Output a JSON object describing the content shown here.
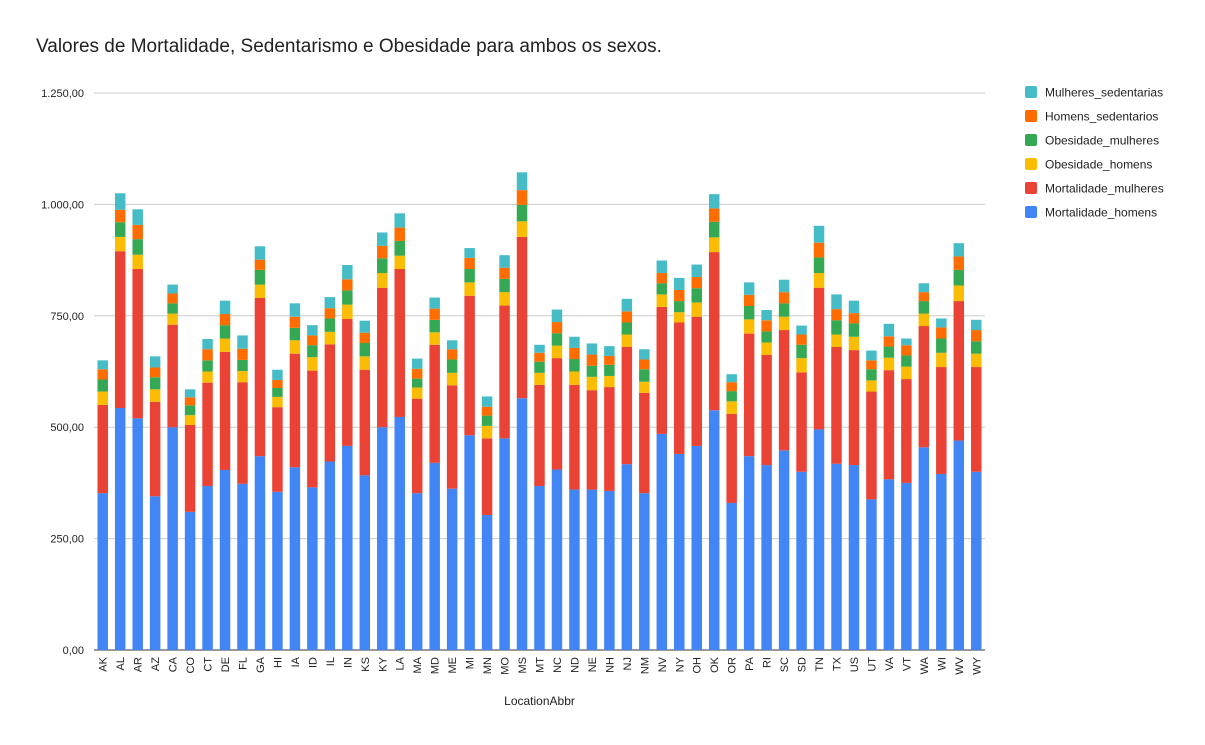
{
  "chart_data": {
    "type": "bar",
    "stacked": true,
    "title": "Valores de Mortalidade, Sedentarismo e Obesidade para ambos os sexos.",
    "xlabel": "LocationAbbr",
    "ylabel": "",
    "ylim": [
      0,
      1250
    ],
    "yticks": [
      "0,00",
      "250,00",
      "500,00",
      "750,00",
      "1.000,00",
      "1.250,00"
    ],
    "grid": true,
    "legend_position": "right",
    "categories": [
      "AK",
      "AL",
      "AR",
      "AZ",
      "CA",
      "CO",
      "CT",
      "DE",
      "FL",
      "GA",
      "HI",
      "IA",
      "ID",
      "IL",
      "IN",
      "KS",
      "KY",
      "LA",
      "MA",
      "MD",
      "ME",
      "MI",
      "MN",
      "MO",
      "MS",
      "MT",
      "NC",
      "ND",
      "NE",
      "NH",
      "NJ",
      "NM",
      "NV",
      "NY",
      "OH",
      "OK",
      "OR",
      "PA",
      "RI",
      "SC",
      "SD",
      "TN",
      "TX",
      "US",
      "UT",
      "VA",
      "VT",
      "WA",
      "WI",
      "WV",
      "WY"
    ],
    "series": [
      {
        "name": "Mortalidade_homens",
        "color": "#4285f4",
        "values": [
          352,
          543,
          520,
          345,
          500,
          310,
          368,
          404,
          373,
          435,
          355,
          410,
          365,
          423,
          458,
          392,
          500,
          523,
          352,
          420,
          362,
          482,
          303,
          475,
          565,
          368,
          405,
          360,
          360,
          357,
          417,
          352,
          485,
          440,
          458,
          538,
          330,
          435,
          415,
          448,
          400,
          495,
          418,
          415,
          338,
          383,
          375,
          455,
          395,
          470,
          400
        ]
      },
      {
        "name": "Mortalidade_mulheres",
        "color": "#ea4335",
        "values": [
          198,
          352,
          335,
          212,
          230,
          195,
          232,
          265,
          228,
          355,
          190,
          255,
          262,
          263,
          285,
          237,
          313,
          332,
          212,
          265,
          232,
          313,
          172,
          298,
          362,
          227,
          250,
          235,
          223,
          233,
          263,
          225,
          285,
          295,
          290,
          355,
          200,
          275,
          247,
          270,
          223,
          318,
          262,
          258,
          242,
          245,
          233,
          272,
          240,
          313,
          235
        ]
      },
      {
        "name": "Obesidade_homens",
        "color": "#fbbc04",
        "values": [
          30,
          32,
          32,
          28,
          25,
          22,
          25,
          30,
          25,
          30,
          23,
          30,
          30,
          28,
          32,
          30,
          33,
          30,
          25,
          28,
          28,
          30,
          28,
          30,
          35,
          27,
          28,
          30,
          30,
          25,
          28,
          25,
          28,
          23,
          32,
          33,
          28,
          32,
          28,
          30,
          32,
          33,
          28,
          30,
          25,
          28,
          28,
          28,
          32,
          35,
          30
        ]
      },
      {
        "name": "Obesidade_mulheres",
        "color": "#34a853",
        "values": [
          27,
          33,
          35,
          27,
          23,
          22,
          25,
          30,
          25,
          33,
          20,
          28,
          27,
          30,
          32,
          30,
          33,
          33,
          20,
          28,
          30,
          30,
          23,
          30,
          37,
          25,
          28,
          28,
          25,
          25,
          27,
          28,
          25,
          25,
          32,
          35,
          23,
          30,
          25,
          30,
          30,
          35,
          32,
          30,
          25,
          25,
          25,
          28,
          32,
          35,
          28
        ]
      },
      {
        "name": "Homens_sedentarios",
        "color": "#ff6d01",
        "values": [
          23,
          28,
          32,
          22,
          22,
          18,
          25,
          25,
          25,
          23,
          18,
          25,
          22,
          23,
          25,
          23,
          28,
          30,
          22,
          25,
          23,
          25,
          20,
          25,
          33,
          20,
          25,
          25,
          25,
          20,
          25,
          22,
          23,
          25,
          25,
          30,
          20,
          25,
          25,
          25,
          23,
          33,
          25,
          23,
          20,
          23,
          23,
          20,
          25,
          30,
          25
        ]
      },
      {
        "name": "Mulheres_sedentarias",
        "color": "#46bdc6",
        "values": [
          20,
          37,
          35,
          25,
          20,
          18,
          23,
          30,
          30,
          30,
          23,
          30,
          23,
          25,
          32,
          27,
          30,
          32,
          23,
          25,
          20,
          22,
          23,
          28,
          40,
          18,
          28,
          25,
          25,
          22,
          28,
          23,
          28,
          27,
          28,
          32,
          18,
          28,
          23,
          28,
          20,
          38,
          33,
          28,
          22,
          28,
          15,
          20,
          20,
          30,
          23
        ]
      }
    ]
  }
}
